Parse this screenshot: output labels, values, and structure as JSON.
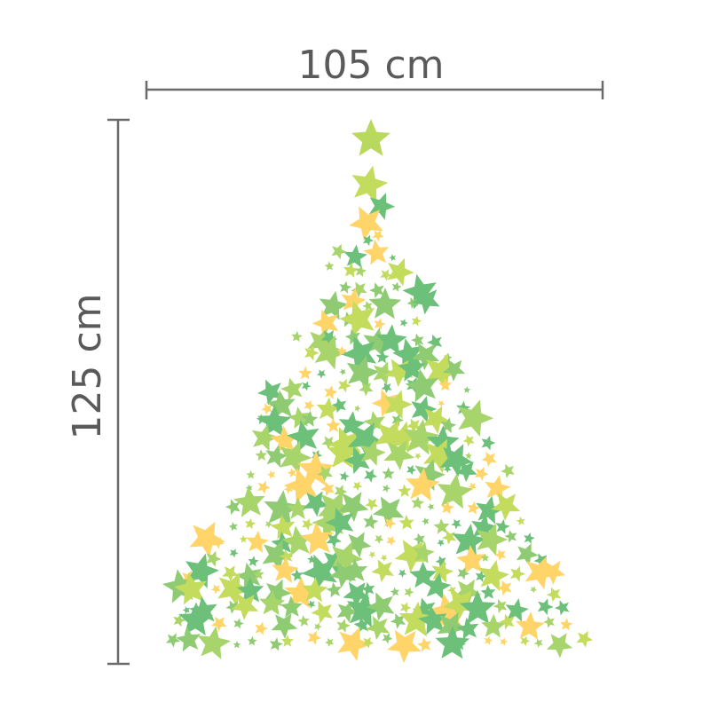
{
  "dimensions": {
    "width": "105 cm",
    "height": "125 cm"
  }
}
